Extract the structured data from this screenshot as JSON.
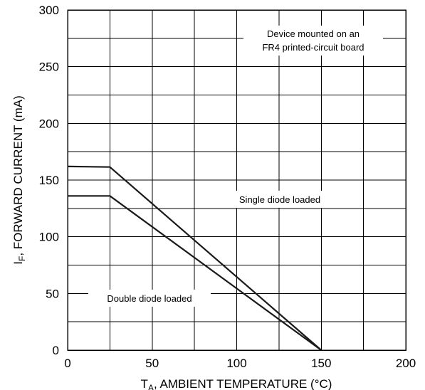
{
  "chart_data": {
    "type": "line",
    "title": "",
    "xlabel_main": "T",
    "xlabel_sub": "A",
    "xlabel_rest": ", AMBIENT TEMPERATURE (°C)",
    "ylabel_main": "I",
    "ylabel_sub": "F",
    "ylabel_rest": ", FORWARD CURRENT (mA)",
    "xlim": [
      0,
      200
    ],
    "ylim": [
      0,
      300
    ],
    "x_ticks": [
      0,
      50,
      100,
      150,
      200
    ],
    "y_ticks": [
      0,
      50,
      100,
      150,
      200,
      250,
      300
    ],
    "x_minor_step": 25,
    "y_minor_step": 25,
    "grid": true,
    "series": [
      {
        "label": "Single diode loaded",
        "x": [
          0,
          25,
          150
        ],
        "y": [
          162,
          161.5,
          0
        ]
      },
      {
        "label": "Double diode loaded",
        "x": [
          0,
          25,
          150
        ],
        "y": [
          136,
          136,
          0
        ]
      }
    ],
    "annotations": {
      "note_line1": "Device mounted on an",
      "note_line2": "FR4 printed-circuit board",
      "single": "Single diode loaded",
      "double": "Double diode loaded"
    }
  }
}
